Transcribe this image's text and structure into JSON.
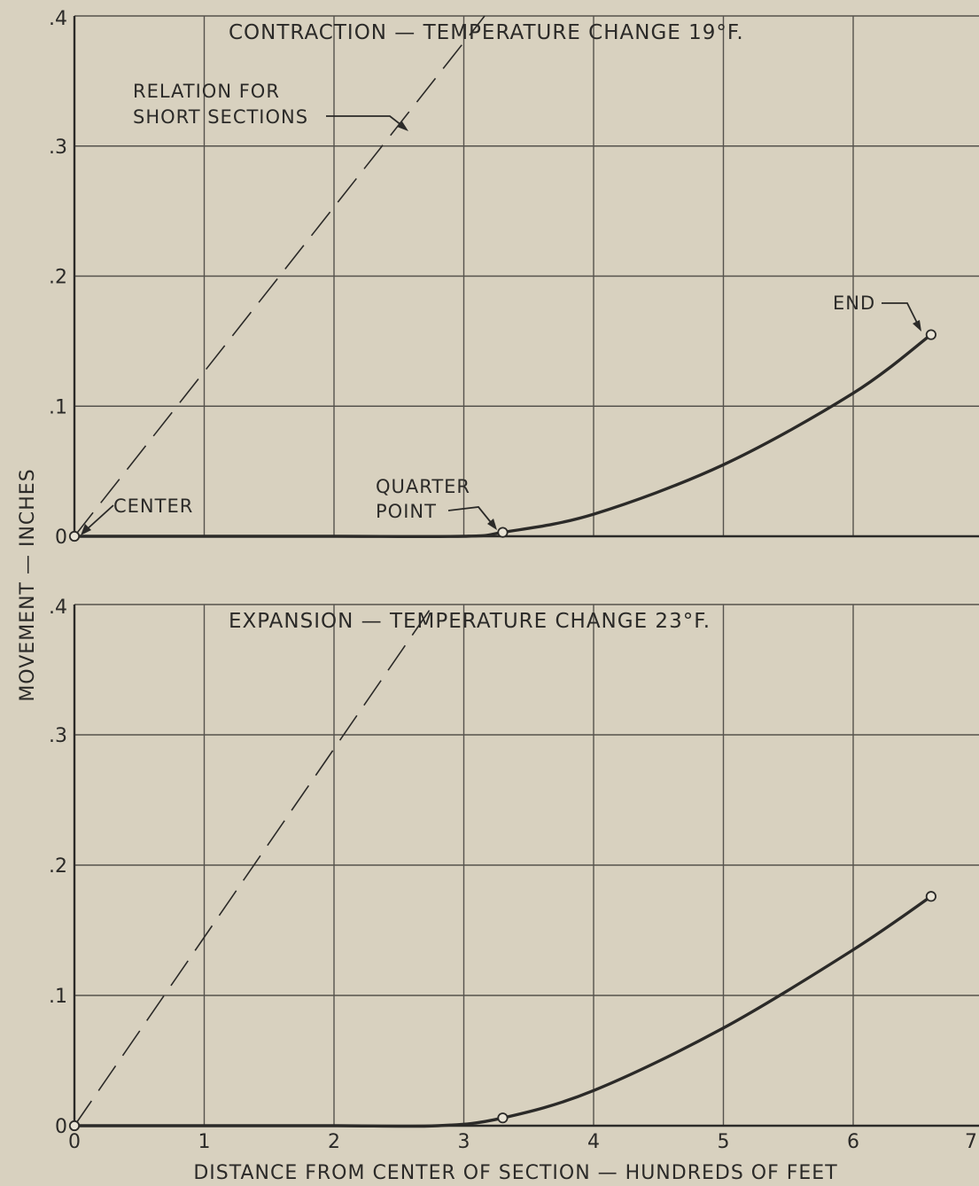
{
  "chart_data": {
    "type": "line",
    "xlabel": "DISTANCE FROM CENTER OF SECTION — HUNDREDS OF FEET",
    "ylabel": "MOVEMENT — INCHES",
    "x_ticks": [
      "0",
      "1",
      "2",
      "3",
      "4",
      "5",
      "6",
      "7"
    ],
    "y_ticks": [
      "0",
      ".1",
      ".2",
      ".3",
      ".4"
    ],
    "xlim": [
      0,
      7
    ],
    "ylim": [
      0,
      0.4
    ],
    "grid": true,
    "panels": [
      {
        "title": "CONTRACTION — TEMPERATURE CHANGE 19°F.",
        "series": [
          {
            "style": "solid",
            "x": [
              0,
              1,
              2,
              3,
              3.3,
              4,
              5,
              6,
              6.6
            ],
            "y": [
              0,
              0,
              0,
              0,
              0.003,
              0.017,
              0.055,
              0.11,
              0.155
            ]
          },
          {
            "style": "dashed",
            "x": [
              0,
              3.2
            ],
            "y": [
              0,
              0.405
            ]
          }
        ],
        "markers": [
          {
            "x": 0,
            "y": 0,
            "label": "CENTER"
          },
          {
            "x": 3.3,
            "y": 0.003,
            "label": "QUARTER POINT"
          },
          {
            "x": 6.6,
            "y": 0.155,
            "label": "END"
          }
        ],
        "annotations": {
          "short_sections_line1": "RELATION FOR",
          "short_sections_line2": "SHORT SECTIONS",
          "center": "CENTER",
          "quarter_line1": "QUARTER",
          "quarter_line2": "POINT",
          "end": "END"
        }
      },
      {
        "title": "EXPANSION — TEMPERATURE CHANGE 23°F.",
        "series": [
          {
            "style": "solid",
            "x": [
              0,
              1,
              2,
              2.8,
              3.3,
              4,
              5,
              6,
              6.6
            ],
            "y": [
              0,
              0,
              0,
              0,
              0.006,
              0.027,
              0.075,
              0.135,
              0.176
            ]
          },
          {
            "style": "dashed",
            "x": [
              0,
              2.8
            ],
            "y": [
              0,
              0.405
            ]
          }
        ],
        "markers": [
          {
            "x": 0,
            "y": 0
          },
          {
            "x": 3.3,
            "y": 0.006
          },
          {
            "x": 6.6,
            "y": 0.176
          }
        ]
      }
    ]
  }
}
